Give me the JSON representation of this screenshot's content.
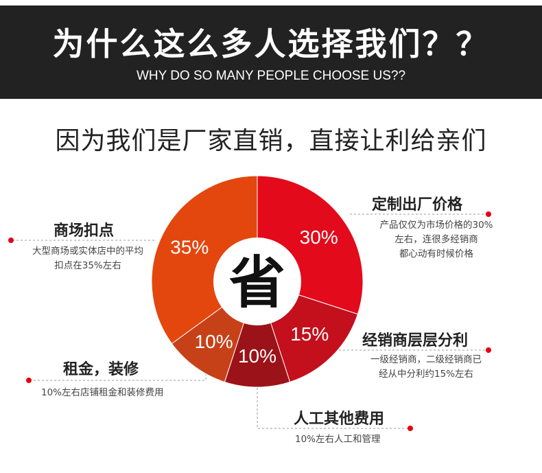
{
  "header": {
    "title": "为什么这么多人选择我们？？",
    "subtitle": "WHY DO SO MANY PEOPLE CHOOSE US??"
  },
  "headline": "因为我们是厂家直销，直接让利给亲们",
  "center_text": "省",
  "colors": {
    "banner": "#222222",
    "accent_dot": "#e60012"
  },
  "chart_data": {
    "type": "pie",
    "title": "",
    "center_label": "省",
    "slices": [
      {
        "label": "定制出厂价格",
        "value": 30,
        "display": "30%",
        "color": "#e20a1b"
      },
      {
        "label": "经销商层层分利",
        "value": 15,
        "display": "15%",
        "color": "#c3101c"
      },
      {
        "label": "人工其他费用",
        "value": 10,
        "display": "10%",
        "color": "#9b1319"
      },
      {
        "label": "租金，装修",
        "value": 10,
        "display": "10%",
        "color": "#c74118"
      },
      {
        "label": "商场扣点",
        "value": 35,
        "display": "35%",
        "color": "#e3470e"
      }
    ]
  },
  "callouts": [
    {
      "title": "定制出厂价格",
      "lines": [
        "产品仅仅为市场价格的30%",
        "左右，连很多经销商",
        "都心动有时候价格"
      ]
    },
    {
      "title": "经销商层层分利",
      "lines": [
        "一级经销商，二级经销商已",
        "经从中分利约15%左右"
      ]
    },
    {
      "title": "人工其他费用",
      "lines": [
        "10%左右人工和管理"
      ]
    },
    {
      "title": "租金，装修",
      "lines": [
        "10%左右店铺租金和装修费用"
      ]
    },
    {
      "title": "商场扣点",
      "lines": [
        "大型商场或实体店中的平均",
        "扣点在35%左右"
      ]
    }
  ]
}
